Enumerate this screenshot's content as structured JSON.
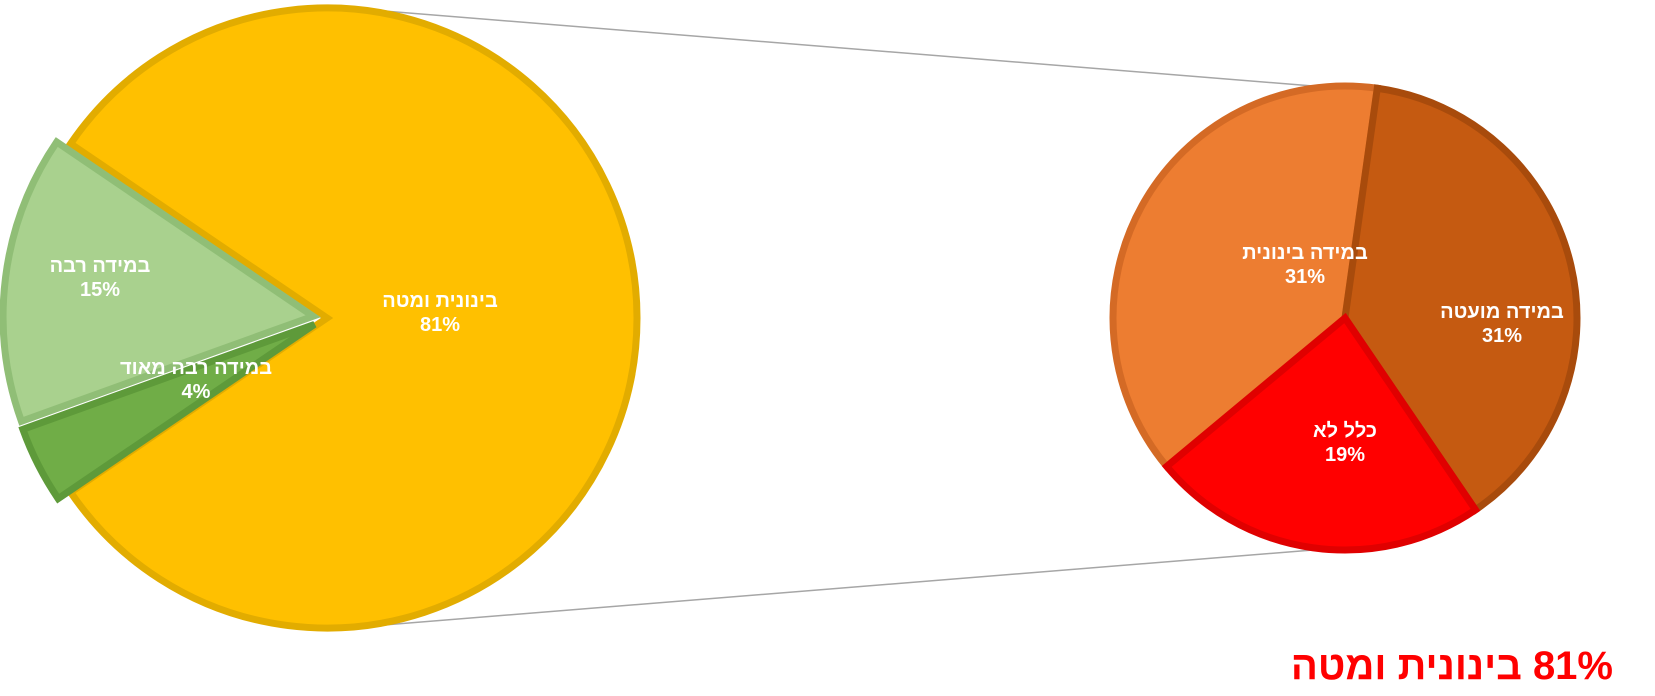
{
  "chart_data": {
    "type": "pie",
    "subtype": "pie-of-pie",
    "main_pie": {
      "slices": [
        {
          "name": "בינונית ומטה",
          "value": 81,
          "label": "81%",
          "color": "#FFC000",
          "border": "#E2AC00"
        },
        {
          "name": "במידה רבה מאוד",
          "value": 4,
          "label": "4%",
          "color": "#70AD47",
          "border": "#5E9A3A"
        },
        {
          "name": "במידה רבה",
          "value": 15,
          "label": "15%",
          "color": "#A9D18E",
          "border": "#90BE76"
        }
      ]
    },
    "secondary_pie": {
      "breakdown_of": "בינונית ומטה",
      "slices": [
        {
          "name": "במידה בינונית",
          "value": 31,
          "label": "31%",
          "color": "#ED7D31",
          "border": "#D46A25"
        },
        {
          "name": "במידה מועטה",
          "value": 31,
          "label": "31%",
          "color": "#C55A11",
          "border": "#A84B0C"
        },
        {
          "name": "כלל לא",
          "value": 19,
          "label": "19%",
          "color": "#FF0000",
          "border": "#E00000"
        }
      ]
    },
    "connector_color": "#A6A6A6"
  },
  "summary": {
    "text": "81% בינונית ומטה",
    "color": "#FF0000"
  }
}
